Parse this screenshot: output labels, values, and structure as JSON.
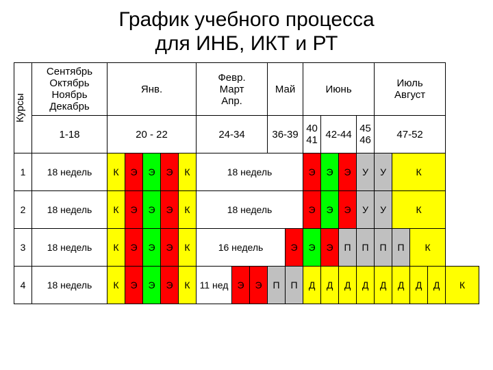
{
  "title_line1": "График учебного процесса",
  "title_line2": "для ИНБ, ИКТ и РТ",
  "side_label": "Курсы",
  "colors": {
    "red": "#ff0000",
    "green": "#00ff00",
    "yellow": "#ffff00",
    "gray": "#c0c0c0",
    "white": "#ffffff"
  },
  "header1": {
    "c1": "Сентябрь\nОктябрь\nНоябрь\nДекабрь",
    "c2": "Янв.",
    "c3": "Февр.\nМарт\nАпр.",
    "c4": "Май",
    "c5": "Июнь",
    "c6": "Июль\nАвгуст"
  },
  "header2": {
    "c1": "1-18",
    "c2": "20 - 22",
    "c3": "24-34",
    "c4": "36-39",
    "c5": "40\n41",
    "c6": "42-44",
    "c7": "45\n46",
    "c8": "47-52"
  },
  "rows": [
    {
      "num": "1",
      "c1": {
        "text": "18 недель",
        "bg": "white",
        "span": 1
      },
      "cells": [
        {
          "text": "К",
          "bg": "yellow"
        },
        {
          "text": "Э",
          "bg": "red"
        },
        {
          "text": "Э",
          "bg": "green"
        },
        {
          "text": "Э",
          "bg": "red"
        },
        {
          "text": "К",
          "bg": "yellow"
        },
        {
          "text": "18 недель",
          "bg": "white",
          "span": 6
        },
        {
          "text": "Э",
          "bg": "red"
        },
        {
          "text": "Э",
          "bg": "green"
        },
        {
          "text": "Э",
          "bg": "red"
        },
        {
          "text": "У",
          "bg": "gray"
        },
        {
          "text": "У",
          "bg": "gray"
        },
        {
          "text": "К",
          "bg": "yellow",
          "span": 3
        }
      ]
    },
    {
      "num": "2",
      "c1": {
        "text": "18 недель",
        "bg": "white",
        "span": 1
      },
      "cells": [
        {
          "text": "К",
          "bg": "yellow"
        },
        {
          "text": "Э",
          "bg": "red"
        },
        {
          "text": "Э",
          "bg": "green"
        },
        {
          "text": "Э",
          "bg": "red"
        },
        {
          "text": "К",
          "bg": "yellow"
        },
        {
          "text": "18 недель",
          "bg": "white",
          "span": 6
        },
        {
          "text": "Э",
          "bg": "red"
        },
        {
          "text": "Э",
          "bg": "green"
        },
        {
          "text": "Э",
          "bg": "red"
        },
        {
          "text": "У",
          "bg": "gray"
        },
        {
          "text": "У",
          "bg": "gray"
        },
        {
          "text": "К",
          "bg": "yellow",
          "span": 3
        }
      ]
    },
    {
      "num": "3",
      "c1": {
        "text": "18 недель",
        "bg": "white",
        "span": 1
      },
      "cells": [
        {
          "text": "К",
          "bg": "yellow"
        },
        {
          "text": "Э",
          "bg": "red"
        },
        {
          "text": "Э",
          "bg": "green"
        },
        {
          "text": "Э",
          "bg": "red"
        },
        {
          "text": "К",
          "bg": "yellow"
        },
        {
          "text": "16 недель",
          "bg": "white",
          "span": 5
        },
        {
          "text": "Э",
          "bg": "red"
        },
        {
          "text": "Э",
          "bg": "green"
        },
        {
          "text": "Э",
          "bg": "red"
        },
        {
          "text": "П",
          "bg": "gray"
        },
        {
          "text": "П",
          "bg": "gray"
        },
        {
          "text": "П",
          "bg": "gray"
        },
        {
          "text": "П",
          "bg": "gray"
        },
        {
          "text": "К",
          "bg": "yellow",
          "span": 2
        }
      ]
    },
    {
      "num": "4",
      "c1": {
        "text": "18 недель",
        "bg": "white",
        "span": 1
      },
      "cells": [
        {
          "text": "К",
          "bg": "yellow"
        },
        {
          "text": "Э",
          "bg": "red"
        },
        {
          "text": "Э",
          "bg": "green"
        },
        {
          "text": "Э",
          "bg": "red"
        },
        {
          "text": "К",
          "bg": "yellow"
        },
        {
          "text": "11 нед",
          "bg": "white",
          "span": 2
        },
        {
          "text": "Э",
          "bg": "red"
        },
        {
          "text": "Э",
          "bg": "red"
        },
        {
          "text": "П",
          "bg": "gray"
        },
        {
          "text": "П",
          "bg": "gray"
        },
        {
          "text": "Д",
          "bg": "yellow"
        },
        {
          "text": "Д",
          "bg": "yellow"
        },
        {
          "text": "Д",
          "bg": "yellow"
        },
        {
          "text": "Д",
          "bg": "yellow"
        },
        {
          "text": "Д",
          "bg": "yellow"
        },
        {
          "text": "Д",
          "bg": "yellow"
        },
        {
          "text": "Д",
          "bg": "yellow"
        },
        {
          "text": "Д",
          "bg": "yellow"
        },
        {
          "text": "К",
          "bg": "yellow"
        }
      ]
    }
  ]
}
